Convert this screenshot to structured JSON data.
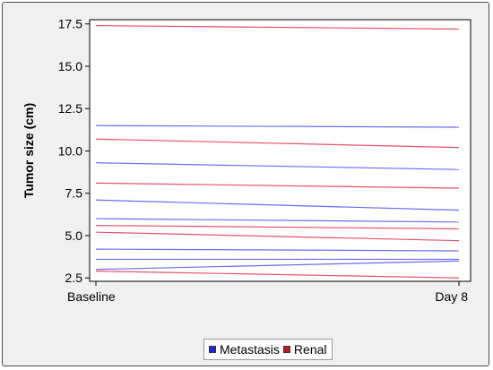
{
  "chart_data": {
    "type": "line",
    "title": "",
    "ylabel": "Tumor size (cm)",
    "xlabel": "",
    "categories": [
      "Baseline",
      "Day 8"
    ],
    "ylim": [
      2.3,
      17.75
    ],
    "yticks": [
      "2.5",
      "5.0",
      "7.5",
      "10.0",
      "12.5",
      "15.0",
      "17.5"
    ],
    "legend_position": "bottom",
    "grid": false,
    "colors": {
      "Metastasis": "#6b6bf0",
      "Renal": "#e8506b"
    },
    "legend_swatches": {
      "Metastasis": "#1a2bd6",
      "Renal": "#c4162a"
    },
    "series": [
      {
        "name": "Renal",
        "values": [
          17.4,
          17.2
        ]
      },
      {
        "name": "Metastasis",
        "values": [
          11.5,
          11.4
        ]
      },
      {
        "name": "Renal",
        "values": [
          10.7,
          10.2
        ]
      },
      {
        "name": "Metastasis",
        "values": [
          9.3,
          8.9
        ]
      },
      {
        "name": "Renal",
        "values": [
          8.1,
          7.8
        ]
      },
      {
        "name": "Metastasis",
        "values": [
          7.1,
          6.5
        ]
      },
      {
        "name": "Metastasis",
        "values": [
          6.0,
          5.8
        ]
      },
      {
        "name": "Renal",
        "values": [
          5.6,
          5.4
        ]
      },
      {
        "name": "Renal",
        "values": [
          5.2,
          4.7
        ]
      },
      {
        "name": "Metastasis",
        "values": [
          4.2,
          4.1
        ]
      },
      {
        "name": "Metastasis",
        "values": [
          3.6,
          3.6
        ]
      },
      {
        "name": "Metastasis",
        "values": [
          3.0,
          3.5
        ]
      },
      {
        "name": "Renal",
        "values": [
          2.9,
          2.5
        ]
      }
    ]
  },
  "legend": {
    "items": [
      {
        "label": "Metastasis"
      },
      {
        "label": "Renal"
      }
    ]
  }
}
